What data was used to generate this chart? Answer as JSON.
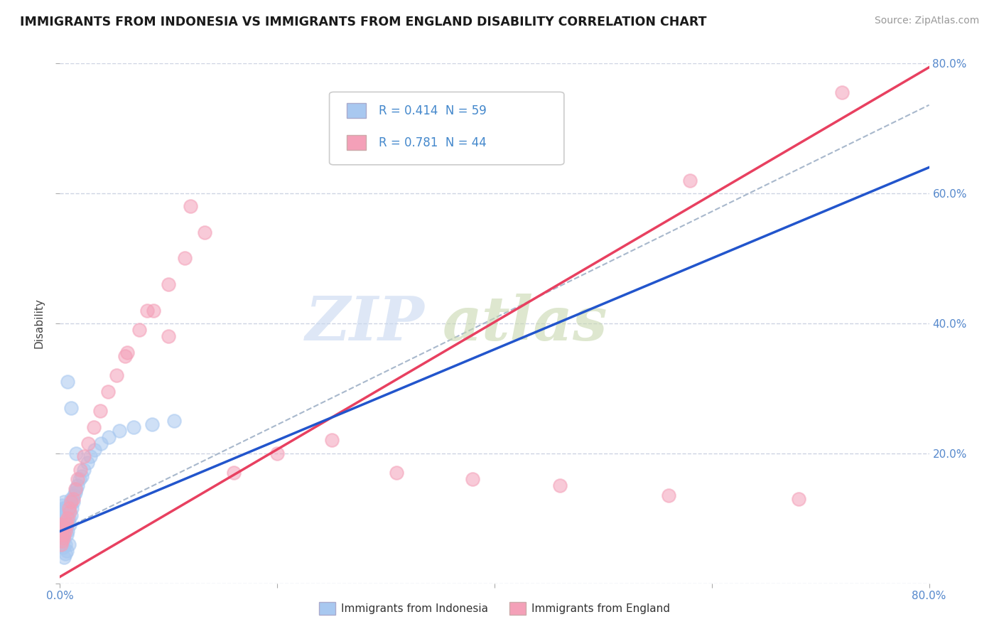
{
  "title": "IMMIGRANTS FROM INDONESIA VS IMMIGRANTS FROM ENGLAND DISABILITY CORRELATION CHART",
  "source": "Source: ZipAtlas.com",
  "ylabel": "Disability",
  "legend_label_1": "Immigrants from Indonesia",
  "legend_label_2": "Immigrants from England",
  "R1": "0.414",
  "N1": "59",
  "R2": "0.781",
  "N2": "44",
  "color_indonesia": "#a8c8f0",
  "color_england": "#f4a0b8",
  "color_line_indonesia": "#2255cc",
  "color_line_england": "#e84060",
  "color_dashed": "#a8b8cc",
  "xlim": [
    0,
    0.8
  ],
  "ylim": [
    0,
    0.8
  ],
  "grid_color": "#c8d0e0",
  "background_color": "#ffffff",
  "indo_x": [
    0.001,
    0.001,
    0.001,
    0.002,
    0.002,
    0.002,
    0.002,
    0.002,
    0.003,
    0.003,
    0.003,
    0.003,
    0.003,
    0.004,
    0.004,
    0.004,
    0.004,
    0.005,
    0.005,
    0.005,
    0.005,
    0.006,
    0.006,
    0.006,
    0.007,
    0.007,
    0.007,
    0.008,
    0.008,
    0.009,
    0.009,
    0.01,
    0.01,
    0.011,
    0.012,
    0.013,
    0.014,
    0.015,
    0.016,
    0.018,
    0.02,
    0.022,
    0.025,
    0.028,
    0.032,
    0.038,
    0.045,
    0.055,
    0.068,
    0.085,
    0.105,
    0.01,
    0.007,
    0.005,
    0.003,
    0.004,
    0.006,
    0.008,
    0.015
  ],
  "indo_y": [
    0.08,
    0.095,
    0.11,
    0.075,
    0.09,
    0.105,
    0.12,
    0.085,
    0.07,
    0.1,
    0.115,
    0.08,
    0.065,
    0.095,
    0.11,
    0.075,
    0.125,
    0.085,
    0.1,
    0.115,
    0.06,
    0.09,
    0.105,
    0.075,
    0.095,
    0.11,
    0.08,
    0.1,
    0.115,
    0.09,
    0.12,
    0.105,
    0.13,
    0.115,
    0.125,
    0.135,
    0.14,
    0.145,
    0.15,
    0.16,
    0.165,
    0.175,
    0.185,
    0.195,
    0.205,
    0.215,
    0.225,
    0.235,
    0.24,
    0.245,
    0.25,
    0.27,
    0.31,
    0.045,
    0.055,
    0.04,
    0.05,
    0.06,
    0.2
  ],
  "eng_x": [
    0.001,
    0.001,
    0.002,
    0.002,
    0.003,
    0.003,
    0.004,
    0.005,
    0.005,
    0.006,
    0.007,
    0.008,
    0.009,
    0.01,
    0.012,
    0.014,
    0.016,
    0.019,
    0.022,
    0.026,
    0.031,
    0.037,
    0.044,
    0.052,
    0.062,
    0.073,
    0.086,
    0.1,
    0.115,
    0.133,
    0.06,
    0.08,
    0.1,
    0.58,
    0.72,
    0.12,
    0.16,
    0.2,
    0.25,
    0.31,
    0.38,
    0.46,
    0.56,
    0.68
  ],
  "eng_y": [
    0.06,
    0.075,
    0.065,
    0.09,
    0.07,
    0.085,
    0.075,
    0.08,
    0.095,
    0.09,
    0.1,
    0.115,
    0.11,
    0.125,
    0.13,
    0.145,
    0.16,
    0.175,
    0.195,
    0.215,
    0.24,
    0.265,
    0.295,
    0.32,
    0.355,
    0.39,
    0.42,
    0.46,
    0.5,
    0.54,
    0.35,
    0.42,
    0.38,
    0.62,
    0.755,
    0.58,
    0.17,
    0.2,
    0.22,
    0.17,
    0.16,
    0.15,
    0.135,
    0.13
  ]
}
